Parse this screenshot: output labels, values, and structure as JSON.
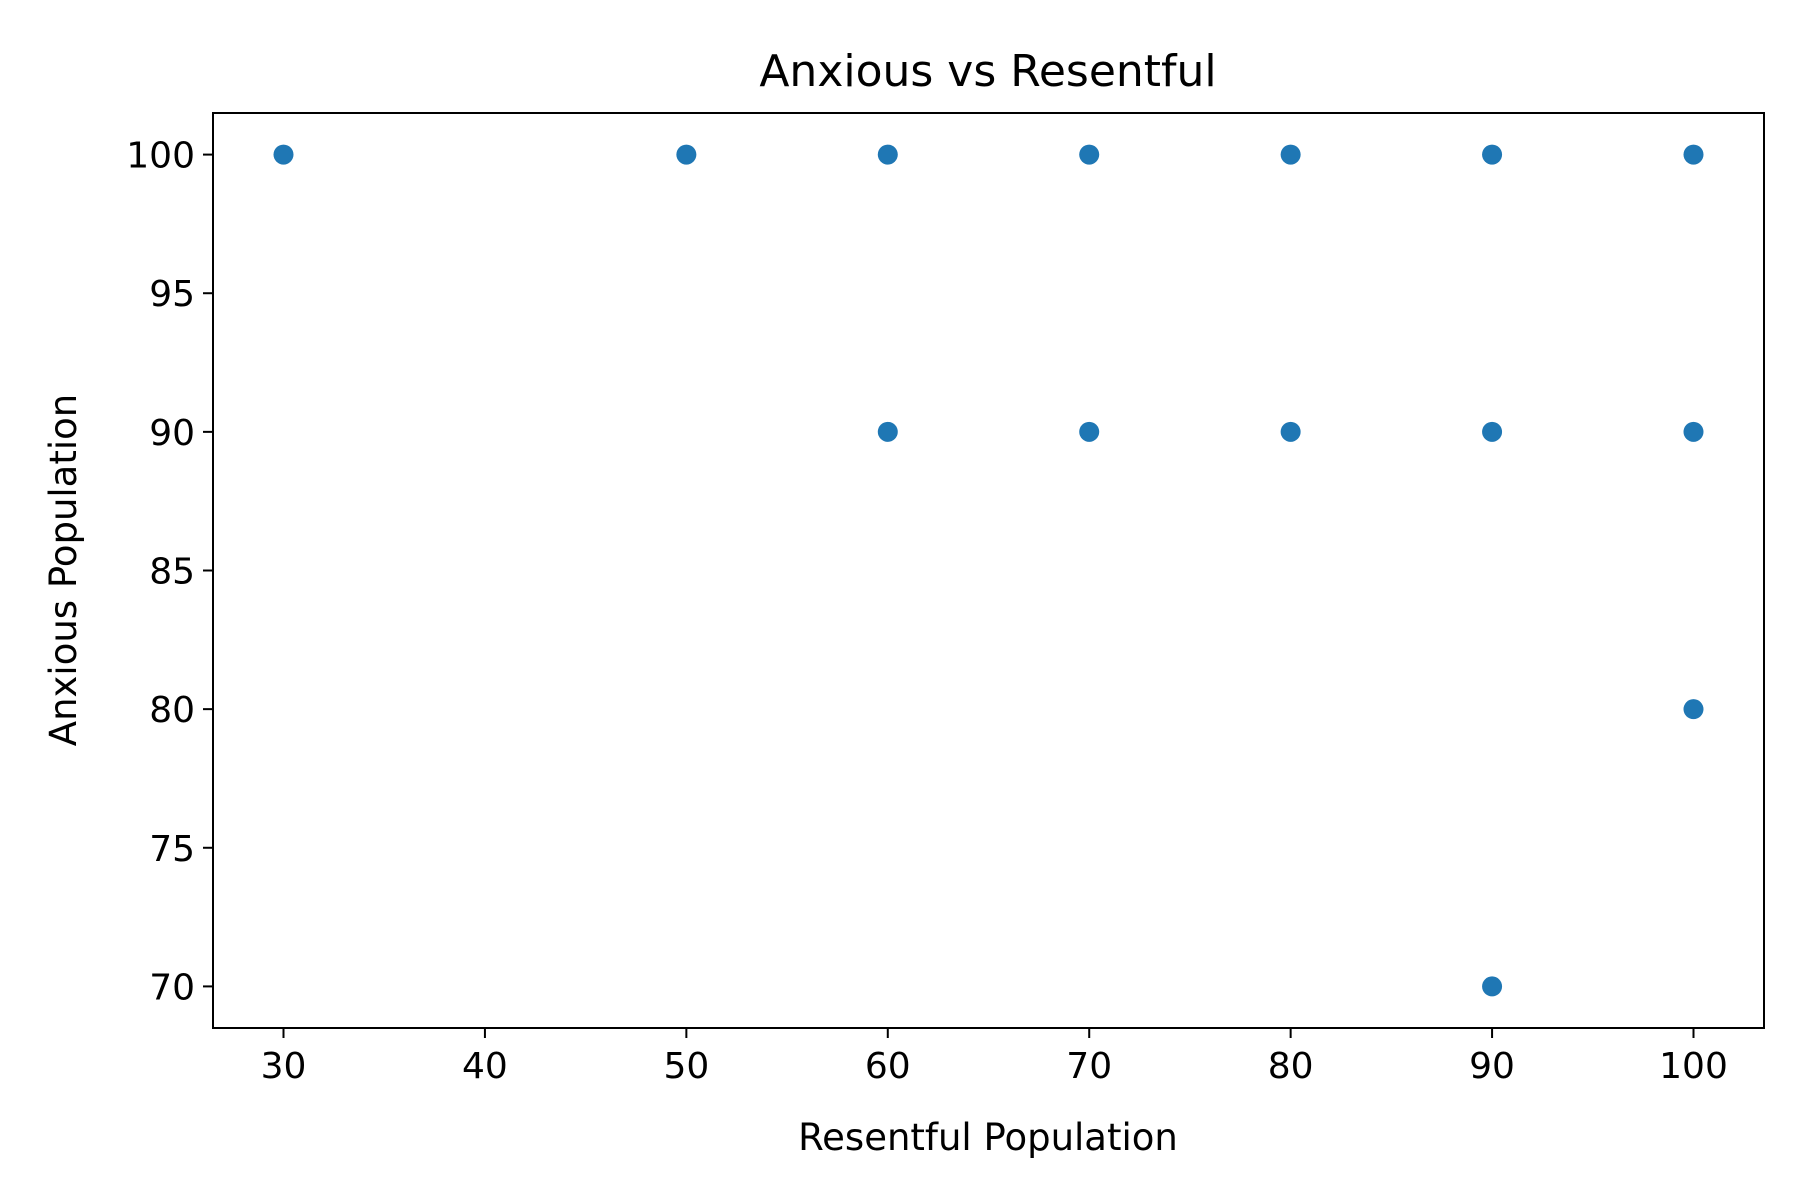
{
  "chart_data": {
    "type": "scatter",
    "title": "Anxious vs Resentful",
    "xlabel": "Resentful Population",
    "ylabel": "Anxious Population",
    "xlim": [
      26.5,
      103.5
    ],
    "ylim": [
      68.5,
      101.5
    ],
    "xticks": [
      30,
      40,
      50,
      60,
      70,
      80,
      90,
      100
    ],
    "yticks": [
      70,
      75,
      80,
      85,
      90,
      95,
      100
    ],
    "grid": false,
    "color": "#1f77b4",
    "points": [
      {
        "x": 30,
        "y": 100
      },
      {
        "x": 50,
        "y": 100
      },
      {
        "x": 60,
        "y": 100
      },
      {
        "x": 70,
        "y": 100
      },
      {
        "x": 80,
        "y": 100
      },
      {
        "x": 90,
        "y": 100
      },
      {
        "x": 100,
        "y": 100
      },
      {
        "x": 60,
        "y": 90
      },
      {
        "x": 70,
        "y": 90
      },
      {
        "x": 80,
        "y": 90
      },
      {
        "x": 90,
        "y": 90
      },
      {
        "x": 100,
        "y": 90
      },
      {
        "x": 100,
        "y": 80
      },
      {
        "x": 90,
        "y": 70
      }
    ]
  }
}
